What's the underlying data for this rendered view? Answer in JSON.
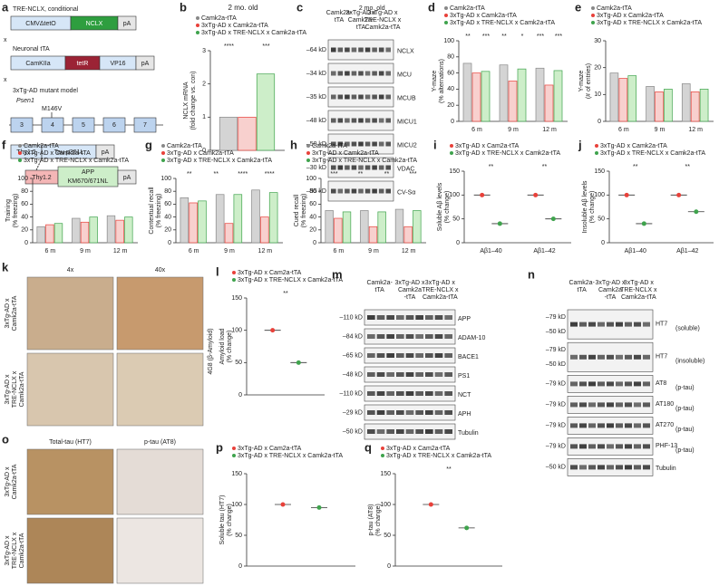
{
  "a": {
    "label": "a",
    "crosses": [
      "x",
      "x"
    ],
    "construct1": {
      "title": "TRE-NCLX, conditional",
      "boxes": [
        "CMVΔtetO",
        "NCLX",
        "pA"
      ]
    },
    "construct2": {
      "title": "Neuronal tTA",
      "boxes": [
        "CamKIIa",
        "tetR",
        "VP16",
        "pA"
      ]
    },
    "construct3": {
      "title": "3xTg-AD mutant model",
      "gene": "Psen1",
      "mutation": "M146V",
      "exons": [
        "3",
        "4",
        "5",
        "6",
        "7"
      ],
      "tau": [
        "Thy1.2",
        "Tau p301L",
        "pA"
      ],
      "app": [
        "Thy1.2",
        "APP",
        "KM670/671NL",
        "pA"
      ]
    }
  },
  "c": {
    "label": "c",
    "header": "2 mo. old",
    "groups": [
      [
        "Camk2a-",
        "tTA"
      ],
      [
        "3xTg-AD x",
        "Camk2a-",
        "tTA"
      ],
      [
        "3xTg-AD x",
        "TRE-NCLX x",
        "Camk2a-tTA"
      ]
    ],
    "rows": [
      {
        "kd": [
          "–64 kD"
        ],
        "name": "NCLX"
      },
      {
        "kd": [
          "–34 kD"
        ],
        "name": "MCU"
      },
      {
        "kd": [
          "–35 kD"
        ],
        "name": "MCUB"
      },
      {
        "kd": [
          "–48 kD"
        ],
        "name": "MICU1"
      },
      {
        "kd": [
          "–50 kD"
        ],
        "name": "MICU2"
      },
      {
        "kd": [
          "–30 kD"
        ],
        "name": "VDAC"
      },
      {
        "kd": [
          "–55 kD"
        ],
        "name": "CV-Sα"
      }
    ]
  },
  "k": {
    "label": "k",
    "columns": [
      "4x",
      "40x"
    ],
    "rows": [
      [
        "3xTg-AD x",
        "Camk2a-tTA"
      ],
      [
        "3xTg-AD x",
        "TRE-NCLX x",
        "Camk2a-tTA"
      ]
    ],
    "side": "4G8 (β-Amyloid)"
  },
  "m": {
    "label": "m",
    "groups": [
      [
        "Camk2a-",
        "tTA"
      ],
      [
        "3xTg-AD x",
        "Camk2a",
        "-tTA"
      ],
      [
        "3xTg-AD x",
        "TRE-NCLX x",
        "Camk2a-tTA"
      ]
    ],
    "rows": [
      {
        "kd": [
          "–110 kD"
        ],
        "name": "APP"
      },
      {
        "kd": [
          "–84 kD"
        ],
        "name": "ADAM-10"
      },
      {
        "kd": [
          "–65 kD"
        ],
        "name": "BACE1"
      },
      {
        "kd": [
          "–48 kD"
        ],
        "name": "PS1"
      },
      {
        "kd": [
          "–110 kD"
        ],
        "name": "NCT"
      },
      {
        "kd": [
          "–29 kD"
        ],
        "name": "APH"
      },
      {
        "kd": [
          "–50 kD"
        ],
        "name": "Tubulin"
      }
    ]
  },
  "n": {
    "label": "n",
    "groups": [
      [
        "Camk2a-",
        "tTA"
      ],
      [
        "3xTg-AD x",
        "Camk2a",
        "-tTA"
      ],
      [
        "3xTg-AD x",
        "TRE-NCLX x",
        "Camk2a-tTA"
      ]
    ],
    "rows": [
      {
        "kd": [
          "–79 kD",
          "–50 kD"
        ],
        "name": "HT7",
        "note": "(soluble)"
      },
      {
        "kd": [
          "–79 kD",
          "–50 kD"
        ],
        "name": "HT7",
        "note": "(insoluble)"
      },
      {
        "kd": [
          "–79 kD"
        ],
        "name": "AT8",
        "note": "(p-tau)"
      },
      {
        "kd": [
          "–79 kD"
        ],
        "name": "AT180",
        "note": "(p-tau)"
      },
      {
        "kd": [
          "–79 kD"
        ],
        "name": "AT270",
        "note": "(p-tau)"
      },
      {
        "kd": [
          "–79 kD"
        ],
        "name": "PHF-13",
        "note": "(p-tau)"
      },
      {
        "kd": [
          "–50 kD"
        ],
        "name": "Tubulin"
      }
    ]
  },
  "o": {
    "label": "o",
    "columns": [
      "Total-tau (HT7)",
      "p-tau (AT8)"
    ],
    "rows": [
      [
        "3xTg-AD x",
        "Camk2a-tTA"
      ],
      [
        "3xTg-AD x",
        "TRE-NCLX x",
        "Camk2a-tTA"
      ]
    ]
  },
  "chart_data": [
    {
      "type": "bar",
      "label": "b",
      "title": "2 mo. old",
      "ylabel": [
        "NCLX mRNA",
        "(fold change vs. con)"
      ],
      "categories": [
        null
      ],
      "series": [
        {
          "name": "Camk2a-tTA",
          "color": "#888888",
          "fill": "#d4d4d4",
          "values": [
            1
          ]
        },
        {
          "name": "3xTg-AD x Camk2a-tTA",
          "color": "#e8413a",
          "fill": "#f8d0ce",
          "values": [
            1
          ]
        },
        {
          "name": "3xTg-AD x TRE-NCLX x Camk2a-tTA",
          "color": "#3fa34d",
          "fill": "#cdeec9",
          "values": [
            2.3
          ]
        }
      ],
      "ylim": [
        0,
        3
      ],
      "yticks": [
        0,
        1,
        2,
        3
      ],
      "annotations": [
        "****",
        "***"
      ]
    },
    {
      "type": "bar",
      "label": "d",
      "ylabel": [
        "Y-maze",
        "(% alternations)"
      ],
      "categories": [
        "6 m",
        "9 m",
        "12 m"
      ],
      "series": [
        {
          "name": "Camk2a-tTA",
          "color": "#888888",
          "fill": "#d4d4d4",
          "values": [
            72,
            70,
            66
          ]
        },
        {
          "name": "3xTg-AD x Camk2a-tTA",
          "color": "#e8413a",
          "fill": "#f8d0ce",
          "values": [
            60,
            50,
            45
          ]
        },
        {
          "name": "3xTg-AD x TRE-NCLX x Camk2a-tTA",
          "color": "#3fa34d",
          "fill": "#cdeec9",
          "values": [
            62,
            65,
            63
          ]
        }
      ],
      "ylim": [
        0,
        100
      ],
      "yticks": [
        0,
        20,
        40,
        60,
        80,
        100
      ],
      "annotations": [
        "**",
        "***",
        "**",
        "*",
        "***",
        "***"
      ]
    },
    {
      "type": "bar",
      "label": "e",
      "ylabel": [
        "Y-maze",
        "(# of entries)"
      ],
      "categories": [
        "6 m",
        "9 m",
        "12 m"
      ],
      "series": [
        {
          "name": "Camk2a-tTA",
          "color": "#888888",
          "fill": "#d4d4d4",
          "values": [
            18,
            13,
            14
          ]
        },
        {
          "name": "3xTg-AD x Camk2a-tTA",
          "color": "#e8413a",
          "fill": "#f8d0ce",
          "values": [
            16,
            11,
            11
          ]
        },
        {
          "name": "3xTg-AD x TRE-NCLX x Camk2a-tTA",
          "color": "#3fa34d",
          "fill": "#cdeec9",
          "values": [
            17,
            12,
            12
          ]
        }
      ],
      "ylim": [
        0,
        30
      ],
      "yticks": [
        0,
        10,
        20,
        30
      ]
    },
    {
      "type": "bar",
      "label": "f",
      "ylabel": [
        "Training",
        "(% freezing)"
      ],
      "categories": [
        "6 m",
        "9 m",
        "12 m"
      ],
      "series": [
        {
          "name": "Camk2a-tTA",
          "color": "#888888",
          "fill": "#d4d4d4",
          "values": [
            25,
            38,
            42
          ]
        },
        {
          "name": "3xTg-AD x Camk2a-tTA",
          "color": "#e8413a",
          "fill": "#f8d0ce",
          "values": [
            28,
            32,
            35
          ]
        },
        {
          "name": "3xTg-AD x TRE-NCLX x Camk2a-tTA",
          "color": "#3fa34d",
          "fill": "#cdeec9",
          "values": [
            30,
            40,
            40
          ]
        }
      ],
      "ylim": [
        0,
        100
      ],
      "yticks": [
        0,
        20,
        40,
        60,
        80,
        100
      ]
    },
    {
      "type": "bar",
      "label": "g",
      "ylabel": [
        "Contextual recall",
        "(% freezing)"
      ],
      "categories": [
        "6 m",
        "9 m",
        "12 m"
      ],
      "series": [
        {
          "name": "Camk2a-tTA",
          "color": "#888888",
          "fill": "#d4d4d4",
          "values": [
            70,
            75,
            82
          ]
        },
        {
          "name": "3xTg-AD x Camk2a-tTA",
          "color": "#e8413a",
          "fill": "#f8d0ce",
          "values": [
            62,
            30,
            40
          ]
        },
        {
          "name": "3xTg-AD x TRE-NCLX x Camk2a-tTA",
          "color": "#3fa34d",
          "fill": "#cdeec9",
          "values": [
            65,
            75,
            78
          ]
        }
      ],
      "ylim": [
        0,
        100
      ],
      "yticks": [
        0,
        20,
        40,
        60,
        80,
        100
      ],
      "annotations": [
        "**",
        "**",
        "****",
        "****"
      ]
    },
    {
      "type": "bar",
      "label": "h",
      "ylabel": [
        "Cued recall",
        "(% freezing)"
      ],
      "categories": [
        "6 m",
        "9 m",
        "12 m"
      ],
      "series": [
        {
          "name": "Camk2a-tTA",
          "color": "#888888",
          "fill": "#d4d4d4",
          "values": [
            50,
            50,
            52
          ]
        },
        {
          "name": "3xTg-AD x Camk2a-tTA",
          "color": "#e8413a",
          "fill": "#f8d0ce",
          "values": [
            38,
            25,
            25
          ]
        },
        {
          "name": "3xTg-AD x TRE-NCLX x Camk2a-tTA",
          "color": "#3fa34d",
          "fill": "#cdeec9",
          "values": [
            48,
            48,
            50
          ]
        }
      ],
      "ylim": [
        0,
        100
      ],
      "yticks": [
        0,
        20,
        40,
        60,
        80,
        100
      ],
      "annotations": [
        "***",
        "**",
        "**",
        "***"
      ]
    },
    {
      "type": "dot",
      "label": "i",
      "ylabel": [
        "Soluble Aβ levels",
        "(% change)"
      ],
      "categories": [
        "Aβ1–40",
        "Aβ1–42"
      ],
      "series": [
        {
          "name": "3xTg-AD x Cam2a-tTA",
          "color": "#e8413a",
          "values": [
            100,
            100
          ]
        },
        {
          "name": "3xTg-AD x TRE-NCLX x Camk2a-tTA",
          "color": "#3fa34d",
          "values": [
            40,
            50
          ]
        }
      ],
      "ylim": [
        0,
        150
      ],
      "yticks": [
        0,
        50,
        100,
        150
      ],
      "annotations": [
        "**",
        "**"
      ]
    },
    {
      "type": "dot",
      "label": "j",
      "ylabel": [
        "Insoluble Aβ levels",
        "(% change)"
      ],
      "categories": [
        "Aβ1–40",
        "Aβ1–42"
      ],
      "series": [
        {
          "name": "3xTg-AD x Camk2a-tTA",
          "color": "#e8413a",
          "values": [
            100,
            100
          ]
        },
        {
          "name": "3xTg-AD x TRE-NCLX x Camk2a-tTA",
          "color": "#3fa34d",
          "values": [
            40,
            65
          ]
        }
      ],
      "ylim": [
        0,
        150
      ],
      "yticks": [
        0,
        50,
        100,
        150
      ],
      "annotations": [
        "**",
        "**"
      ]
    },
    {
      "type": "dot",
      "label": "l",
      "ylabel": [
        "Amyloid load",
        "(% change)"
      ],
      "categories": [
        null
      ],
      "series": [
        {
          "name": "3xTg-AD x Cam2a-tTA",
          "color": "#e8413a",
          "values": [
            100
          ]
        },
        {
          "name": "3xTg-AD x TRE-NCLX x Camk2a-tTA",
          "color": "#3fa34d",
          "values": [
            50
          ]
        }
      ],
      "ylim": [
        0,
        150
      ],
      "yticks": [
        0,
        50,
        100,
        150
      ],
      "annotations": [
        "**"
      ]
    },
    {
      "type": "dot",
      "label": "p",
      "ylabel": [
        "Soluble tau (HT7)",
        "(% change)"
      ],
      "categories": [
        null
      ],
      "series": [
        {
          "name": "3xTg-AD x Cam2a-tTA",
          "color": "#e8413a",
          "values": [
            100
          ]
        },
        {
          "name": "3xTg-AD x TRE-NCLX x Camk2a-tTA",
          "color": "#3fa34d",
          "values": [
            95
          ]
        }
      ],
      "ylim": [
        0,
        150
      ],
      "yticks": [
        0,
        50,
        100,
        150
      ]
    },
    {
      "type": "dot",
      "label": "q",
      "ylabel": [
        "p-tau (AT8)",
        "(% change)"
      ],
      "categories": [
        null
      ],
      "series": [
        {
          "name": "3xTg-AD x Cam2a-tTA",
          "color": "#e8413a",
          "values": [
            100
          ]
        },
        {
          "name": "3xTg-AD x TRE-NCLX x Camk2a-tTA",
          "color": "#3fa34d",
          "values": [
            62
          ]
        }
      ],
      "ylim": [
        0,
        150
      ],
      "yticks": [
        0,
        50,
        100,
        150
      ],
      "annotations": [
        "**"
      ]
    }
  ]
}
